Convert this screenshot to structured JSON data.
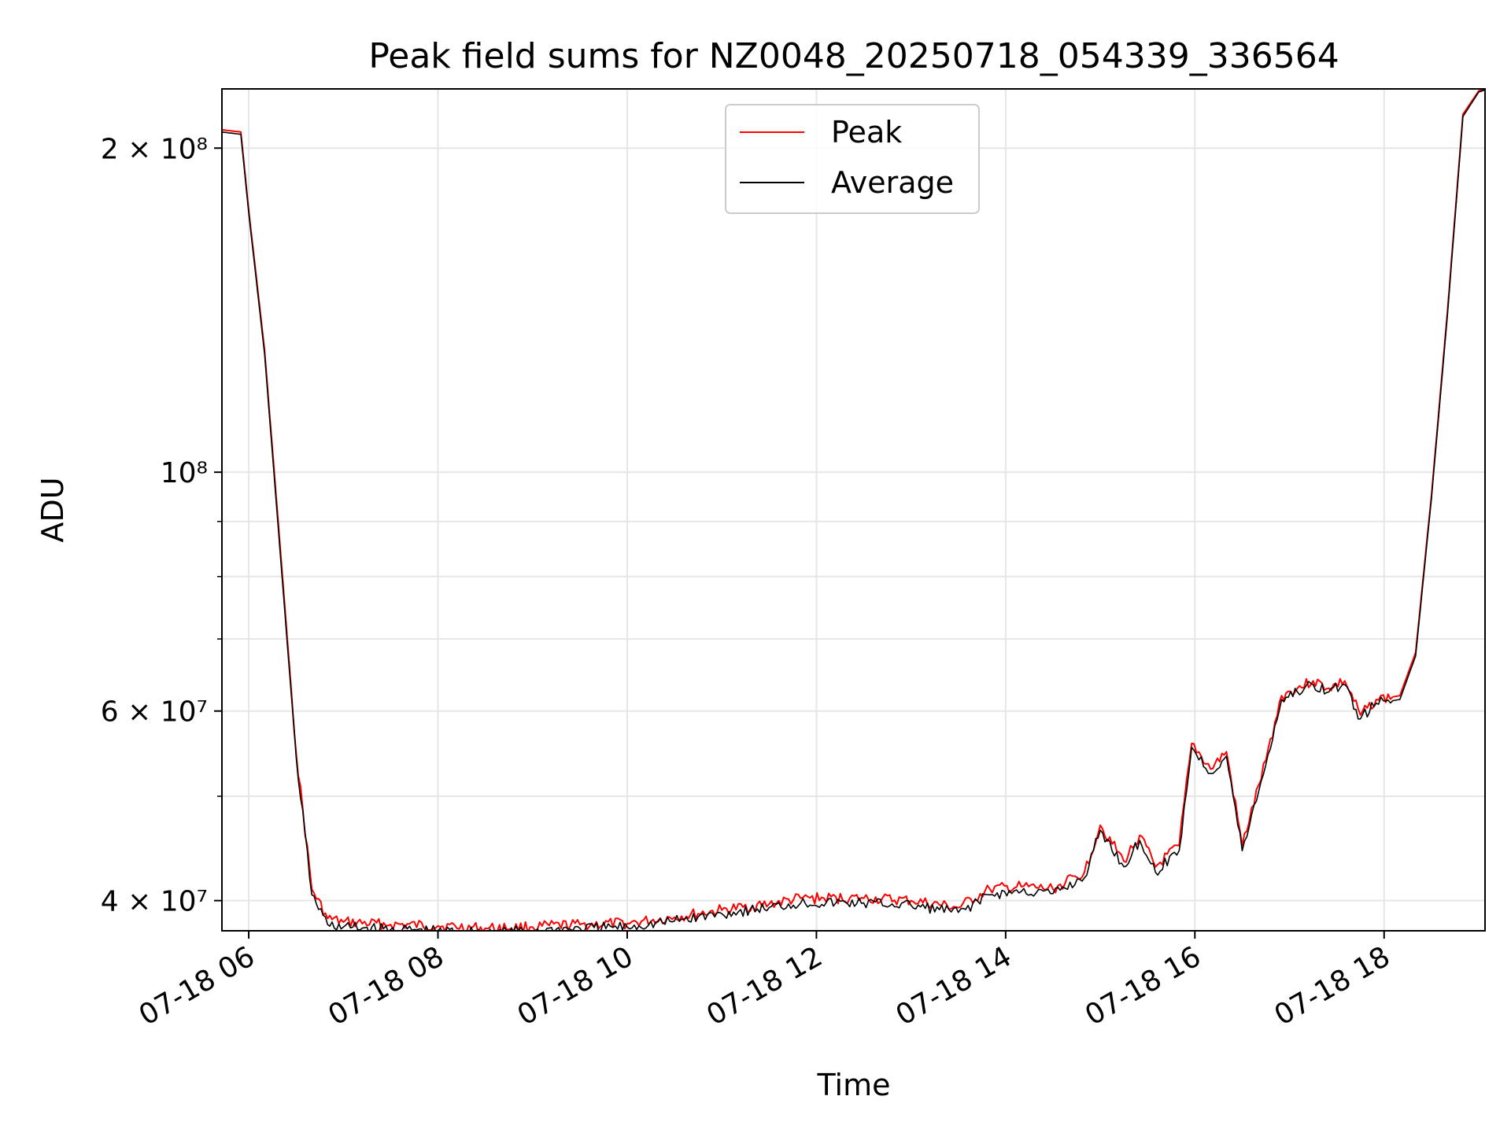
{
  "chart_data": {
    "type": "line",
    "title": "Peak field sums for NZ0048_20250718_054339_336564",
    "xlabel": "Time",
    "ylabel": "ADU",
    "x_axis": {
      "type": "time",
      "range": [
        "2025-07-18 05:43",
        "2025-07-18 19:04"
      ],
      "ticks": [
        "2025-07-18 06:00",
        "2025-07-18 08:00",
        "2025-07-18 10:00",
        "2025-07-18 12:00",
        "2025-07-18 14:00",
        "2025-07-18 16:00",
        "2025-07-18 18:00"
      ],
      "tick_labels": [
        "07-18 06",
        "07-18 08",
        "07-18 10",
        "07-18 12",
        "07-18 14",
        "07-18 16",
        "07-18 18"
      ]
    },
    "y_axis": {
      "scale": "log",
      "range": [
        37500000,
        227000000
      ],
      "major_ticks": [
        40000000,
        60000000,
        100000000,
        200000000
      ],
      "major_tick_labels": [
        "4 × 10⁷",
        "6 × 10⁷",
        "10⁸",
        "2 × 10⁸"
      ],
      "minor_ticks": [
        50000000,
        70000000,
        80000000,
        90000000
      ]
    },
    "grid": true,
    "legend": {
      "placement": "upper center"
    },
    "series": [
      {
        "name": "Peak",
        "color": "#ff0000",
        "x": [
          "2025-07-18 05:43",
          "2025-07-18 05:55",
          "2025-07-18 06:00",
          "2025-07-18 06:10",
          "2025-07-18 06:20",
          "2025-07-18 06:30",
          "2025-07-18 06:40",
          "2025-07-18 06:50",
          "2025-07-18 07:00",
          "2025-07-18 07:30",
          "2025-07-18 08:00",
          "2025-07-18 08:30",
          "2025-07-18 09:00",
          "2025-07-18 09:30",
          "2025-07-18 10:00",
          "2025-07-18 10:30",
          "2025-07-18 11:00",
          "2025-07-18 11:30",
          "2025-07-18 11:50",
          "2025-07-18 12:30",
          "2025-07-18 13:00",
          "2025-07-18 13:30",
          "2025-07-18 13:50",
          "2025-07-18 14:10",
          "2025-07-18 14:30",
          "2025-07-18 14:50",
          "2025-07-18 15:00",
          "2025-07-18 15:15",
          "2025-07-18 15:25",
          "2025-07-18 15:35",
          "2025-07-18 15:50",
          "2025-07-18 15:58",
          "2025-07-18 16:10",
          "2025-07-18 16:20",
          "2025-07-18 16:30",
          "2025-07-18 16:45",
          "2025-07-18 16:55",
          "2025-07-18 17:05",
          "2025-07-18 17:15",
          "2025-07-18 17:25",
          "2025-07-18 17:35",
          "2025-07-18 17:45",
          "2025-07-18 17:55",
          "2025-07-18 18:10",
          "2025-07-18 18:20",
          "2025-07-18 18:30",
          "2025-07-18 18:40",
          "2025-07-18 18:50",
          "2025-07-18 19:00",
          "2025-07-18 19:04"
        ],
        "y": [
          208000000,
          207000000,
          175000000,
          130000000,
          85000000,
          55000000,
          41000000,
          38500000,
          38200000,
          38000000,
          37900000,
          37700000,
          37800000,
          38000000,
          38100000,
          38600000,
          39200000,
          39700000,
          40200000,
          40200000,
          40000000,
          39400000,
          41000000,
          41200000,
          41000000,
          42500000,
          47000000,
          43500000,
          46000000,
          43000000,
          45000000,
          56000000,
          53000000,
          55000000,
          45000000,
          54000000,
          62000000,
          63000000,
          64000000,
          63000000,
          64000000,
          59500000,
          61500000,
          62000000,
          68000000,
          95000000,
          140000000,
          215000000,
          226000000,
          227000000
        ]
      },
      {
        "name": "Average",
        "color": "#000000",
        "x": [
          "2025-07-18 05:43",
          "2025-07-18 05:55",
          "2025-07-18 06:00",
          "2025-07-18 06:10",
          "2025-07-18 06:20",
          "2025-07-18 06:30",
          "2025-07-18 06:40",
          "2025-07-18 06:50",
          "2025-07-18 07:00",
          "2025-07-18 07:30",
          "2025-07-18 08:00",
          "2025-07-18 08:30",
          "2025-07-18 09:00",
          "2025-07-18 09:30",
          "2025-07-18 10:00",
          "2025-07-18 10:30",
          "2025-07-18 11:00",
          "2025-07-18 11:30",
          "2025-07-18 11:50",
          "2025-07-18 12:30",
          "2025-07-18 13:00",
          "2025-07-18 13:30",
          "2025-07-18 13:50",
          "2025-07-18 14:10",
          "2025-07-18 14:30",
          "2025-07-18 14:50",
          "2025-07-18 15:00",
          "2025-07-18 15:15",
          "2025-07-18 15:25",
          "2025-07-18 15:35",
          "2025-07-18 15:50",
          "2025-07-18 15:58",
          "2025-07-18 16:10",
          "2025-07-18 16:20",
          "2025-07-18 16:30",
          "2025-07-18 16:45",
          "2025-07-18 16:55",
          "2025-07-18 17:05",
          "2025-07-18 17:15",
          "2025-07-18 17:25",
          "2025-07-18 17:35",
          "2025-07-18 17:45",
          "2025-07-18 17:55",
          "2025-07-18 18:10",
          "2025-07-18 18:20",
          "2025-07-18 18:30",
          "2025-07-18 18:40",
          "2025-07-18 18:50",
          "2025-07-18 19:00",
          "2025-07-18 19:04"
        ],
        "y": [
          207000000,
          206000000,
          174000000,
          129000000,
          84000000,
          54500000,
          40500000,
          38000000,
          37800000,
          37600000,
          37500000,
          37400000,
          37500000,
          37700000,
          37800000,
          38300000,
          38900000,
          39400000,
          39800000,
          39800000,
          39600000,
          39000000,
          40500000,
          40800000,
          40600000,
          42000000,
          46500000,
          43000000,
          45500000,
          42500000,
          44500000,
          55500000,
          52500000,
          54500000,
          44500000,
          53500000,
          61500000,
          62500000,
          63500000,
          62500000,
          63500000,
          59000000,
          61000000,
          61500000,
          67500000,
          94500000,
          139000000,
          214000000,
          225500000,
          226500000
        ]
      }
    ]
  }
}
